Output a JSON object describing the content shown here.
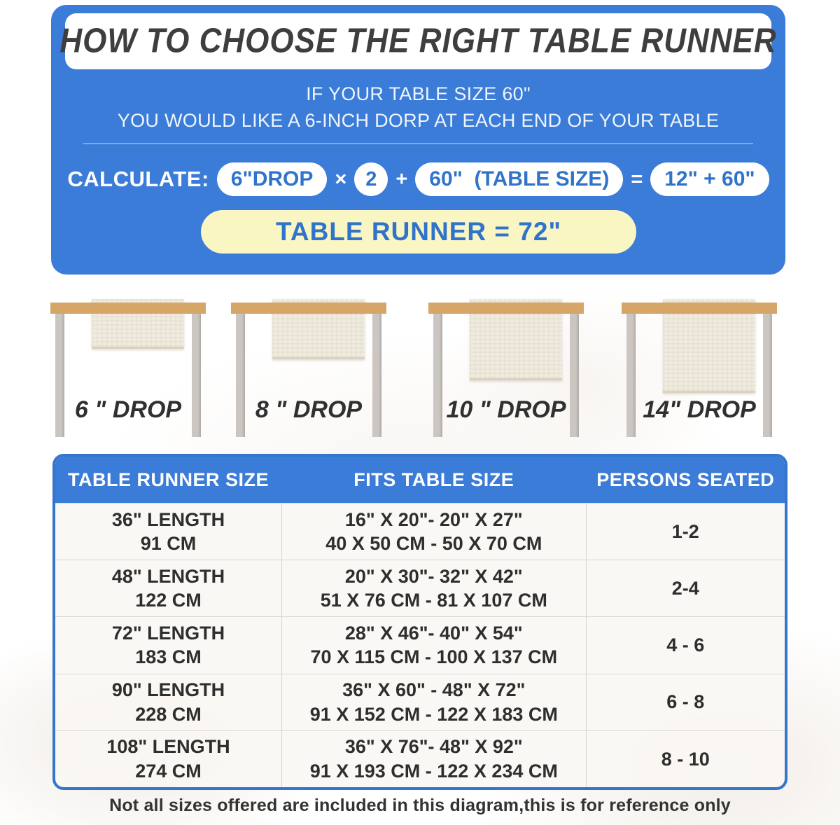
{
  "header": {
    "title": "HOW TO CHOOSE THE RIGHT TABLE RUNNER",
    "subtitle_line1": "IF YOUR TABLE SIZE 60\"",
    "subtitle_line2": "YOU WOULD LIKE A 6-INCH DORP AT EACH END OF YOUR TABLE"
  },
  "calculation": {
    "label": "CALCULATE:",
    "drop_pill": "6\"DROP",
    "multiply_sign": "×",
    "multiplier": "2",
    "plus_sign": "+",
    "table_size_pill": "60\"  (TABLE SIZE)",
    "equals_sign": "=",
    "sum_pill": "12\" + 60\"",
    "result_pill": "TABLE RUNNER = 72\""
  },
  "drop_examples": [
    {
      "label": "6 \" DROP"
    },
    {
      "label": "8 \" DROP"
    },
    {
      "label": "10 \" DROP"
    },
    {
      "label": "14\" DROP"
    }
  ],
  "size_table": {
    "headers": [
      "TABLE RUNNER SIZE",
      "FITS TABLE SIZE",
      "PERSONS SEATED"
    ],
    "rows": [
      {
        "runner_in": "36\" LENGTH",
        "runner_cm": "91 CM",
        "fits_in": "16\" X 20\"- 20\" X 27\"",
        "fits_cm": "40 X 50 CM - 50 X 70 CM",
        "persons": "1-2"
      },
      {
        "runner_in": "48\" LENGTH",
        "runner_cm": "122 CM",
        "fits_in": "20\" X 30\"- 32\" X 42\"",
        "fits_cm": "51 X 76 CM - 81 X 107 CM",
        "persons": "2-4"
      },
      {
        "runner_in": "72\" LENGTH",
        "runner_cm": "183 CM",
        "fits_in": "28\" X 46\"- 40\" X 54\"",
        "fits_cm": "70 X 115 CM - 100 X 137 CM",
        "persons": "4 - 6"
      },
      {
        "runner_in": "90\" LENGTH",
        "runner_cm": "228 CM",
        "fits_in": "36\" X 60\" - 48\" X 72\"",
        "fits_cm": "91 X 152 CM - 122 X 183 CM",
        "persons": "6 - 8"
      },
      {
        "runner_in": "108\" LENGTH",
        "runner_cm": "274 CM",
        "fits_in": "36\" X 76\"- 48\" X 92\"",
        "fits_cm": "91 X 193 CM - 122 X 234 CM",
        "persons": "8 - 10"
      }
    ]
  },
  "footer": {
    "note": "Not all sizes offered are included in this diagram,this is for reference only"
  },
  "colors": {
    "accent_blue": "#3B7CD8",
    "pill_text_blue": "#2F74CA",
    "result_yellow": "#FAF6C3",
    "tabletop_wood": "#D5A667",
    "leg_gray": "#C5C0BB",
    "runner_cream": "#F0EBDF",
    "title_text": "#3E3E3E",
    "body_text": "#2E2E2E"
  }
}
